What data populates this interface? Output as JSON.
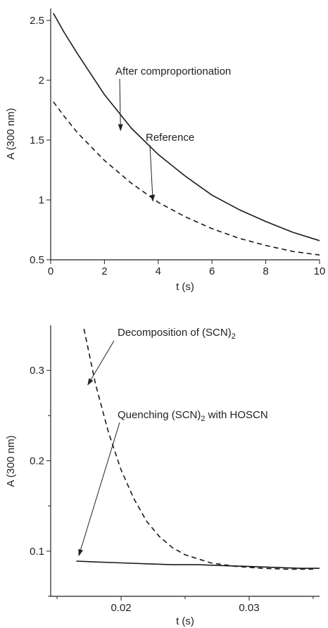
{
  "chart_data": [
    {
      "type": "line",
      "xlabel": "t (s)",
      "ylabel": "A (300 nm)",
      "xlim": [
        0,
        10
      ],
      "ylim": [
        0.5,
        2.6
      ],
      "x_ticks": [
        "0",
        "2",
        "4",
        "6",
        "8",
        "10"
      ],
      "y_ticks": [
        "0.5",
        "1",
        "1.5",
        "2",
        "2.5"
      ],
      "grid": false,
      "series": [
        {
          "name": "After comproportionation",
          "style": "solid",
          "x": [
            0.1,
            0.5,
            1,
            2,
            3,
            4,
            5,
            6,
            7,
            8,
            9,
            10
          ],
          "y": [
            2.56,
            2.4,
            2.22,
            1.88,
            1.6,
            1.38,
            1.2,
            1.04,
            0.92,
            0.82,
            0.73,
            0.66
          ]
        },
        {
          "name": "Reference",
          "style": "dashed",
          "x": [
            0.1,
            0.5,
            1,
            2,
            3,
            4,
            5,
            6,
            7,
            8,
            9,
            10
          ],
          "y": [
            1.82,
            1.7,
            1.56,
            1.33,
            1.14,
            0.98,
            0.86,
            0.76,
            0.68,
            0.62,
            0.57,
            0.54
          ]
        }
      ],
      "annotations": [
        {
          "text": "After comproportionation",
          "sub": "",
          "suffix": "",
          "target_x": 2.6,
          "target_y": 1.58
        },
        {
          "text": "Reference",
          "sub": "",
          "suffix": "",
          "target_x": 3.8,
          "target_y": 0.99
        }
      ]
    },
    {
      "type": "line",
      "xlabel": "t (s)",
      "ylabel": "A (300 nm)",
      "xlim": [
        0.0145,
        0.0355
      ],
      "ylim": [
        0.05,
        0.35
      ],
      "x_ticks": [
        "0.02",
        "0.03"
      ],
      "x_tick_values": [
        0.02,
        0.03
      ],
      "y_ticks": [
        "0.1",
        "0.2",
        "0.3"
      ],
      "y_tick_values": [
        0.1,
        0.2,
        0.3
      ],
      "x_minor_ticks": [
        0.015,
        0.025,
        0.035
      ],
      "y_minor_ticks": [
        0.05,
        0.15,
        0.25
      ],
      "grid": false,
      "series": [
        {
          "name": "Decomposition of (SCN)2",
          "style": "dashed",
          "x": [
            0.0171,
            0.018,
            0.019,
            0.02,
            0.021,
            0.022,
            0.023,
            0.024,
            0.025,
            0.027,
            0.029,
            0.031,
            0.033,
            0.035
          ],
          "y": [
            0.346,
            0.285,
            0.232,
            0.19,
            0.158,
            0.133,
            0.116,
            0.104,
            0.096,
            0.087,
            0.083,
            0.081,
            0.08,
            0.08
          ]
        },
        {
          "name": "Quenching (SCN)2 with HOSCN",
          "style": "solid",
          "x": [
            0.0165,
            0.018,
            0.02,
            0.022,
            0.024,
            0.026,
            0.028,
            0.03,
            0.032,
            0.034,
            0.0355
          ],
          "y": [
            0.089,
            0.088,
            0.087,
            0.086,
            0.085,
            0.085,
            0.084,
            0.083,
            0.082,
            0.081,
            0.081
          ]
        }
      ],
      "annotations": [
        {
          "text": "Decomposition of (SCN)",
          "sub": "2",
          "suffix": "",
          "target_x": 0.0174,
          "target_y": 0.284
        },
        {
          "text": "Quenching (SCN)",
          "sub": "2",
          "suffix": " with HOSCN",
          "target_x": 0.0167,
          "target_y": 0.095
        }
      ]
    }
  ]
}
